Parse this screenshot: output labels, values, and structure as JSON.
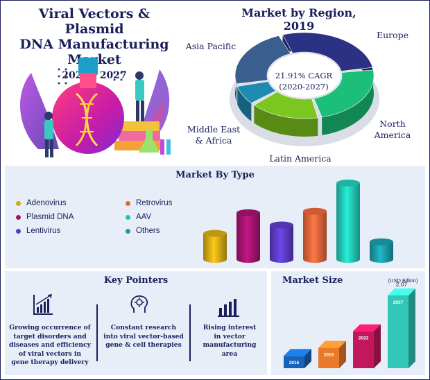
{
  "header": {
    "title_line1": "Viral Vectors & Plasmid",
    "title_line2": "DNA Manufacturing Market",
    "years": "2020 - 2027"
  },
  "colors": {
    "navy": "#1a1f5c",
    "panel_bg": "#e7eef7",
    "accent_gold": "#d4a915",
    "accent_magenta": "#a3136e"
  },
  "icons": [
    "lab-illustration",
    "growth-chart-icon",
    "brain-gear-icon",
    "bar-chart-icon"
  ],
  "chart_data": [
    {
      "type": "pie",
      "title": "Market by Region, 2019",
      "center_text_line1": "21.91% CAGR",
      "center_text_line2": "(2020-2027)",
      "labels": [
        "Europe",
        "North America",
        "Latin America",
        "Middle East & Africa",
        "Asia Pacific"
      ],
      "label_lines": [
        [
          "Europe"
        ],
        [
          "North",
          "America"
        ],
        [
          "Latin America"
        ],
        [
          "Middle East",
          "& Africa"
        ],
        [
          "Asia Pacific"
        ]
      ],
      "values": [
        28,
        24,
        17,
        8,
        23
      ],
      "colors": [
        "#2c3283",
        "#1bbf7a",
        "#7cc71f",
        "#1f8ab0",
        "#3a5f8f"
      ]
    },
    {
      "type": "bar",
      "title": "Market By Type",
      "categories": [
        "Adenovirus",
        "Plasmid DNA",
        "Lentivirus",
        "Retrovirus",
        "AAV",
        "Others"
      ],
      "values": [
        34,
        61,
        45,
        63,
        100,
        23
      ],
      "colors": [
        "#d4a915",
        "#a3136e",
        "#5b3bc4",
        "#e8643a",
        "#21c7b4",
        "#1a9aa8"
      ],
      "legend_position": "left"
    },
    {
      "type": "bar",
      "title": "Market Size",
      "unit_label": "(USD Billion)",
      "categories": [
        "2016",
        "2019",
        "2023",
        "2027"
      ],
      "values": [
        0.35,
        0.58,
        1.05,
        2.07
      ],
      "data_labels": [
        "",
        "",
        "",
        "2.07"
      ],
      "colors": [
        "#1664b8",
        "#e87a2a",
        "#c2185b",
        "#33c7b8"
      ]
    }
  ],
  "key_pointers": {
    "title": "Key Pointers",
    "items": [
      {
        "icon": "growth-chart-icon",
        "text_lines": [
          "Growing occurrence of",
          "target disorders and",
          "diseases and efficiency",
          "of viral vectors in",
          "gene therapy delivery"
        ]
      },
      {
        "icon": "brain-gear-icon",
        "text_lines": [
          "Constant research",
          "into viral vector-based",
          "gene & cell therapies"
        ]
      },
      {
        "icon": "bar-chart-icon",
        "text_lines": [
          "Rising interest",
          "in vector",
          "manufacturing",
          "area"
        ]
      }
    ]
  }
}
